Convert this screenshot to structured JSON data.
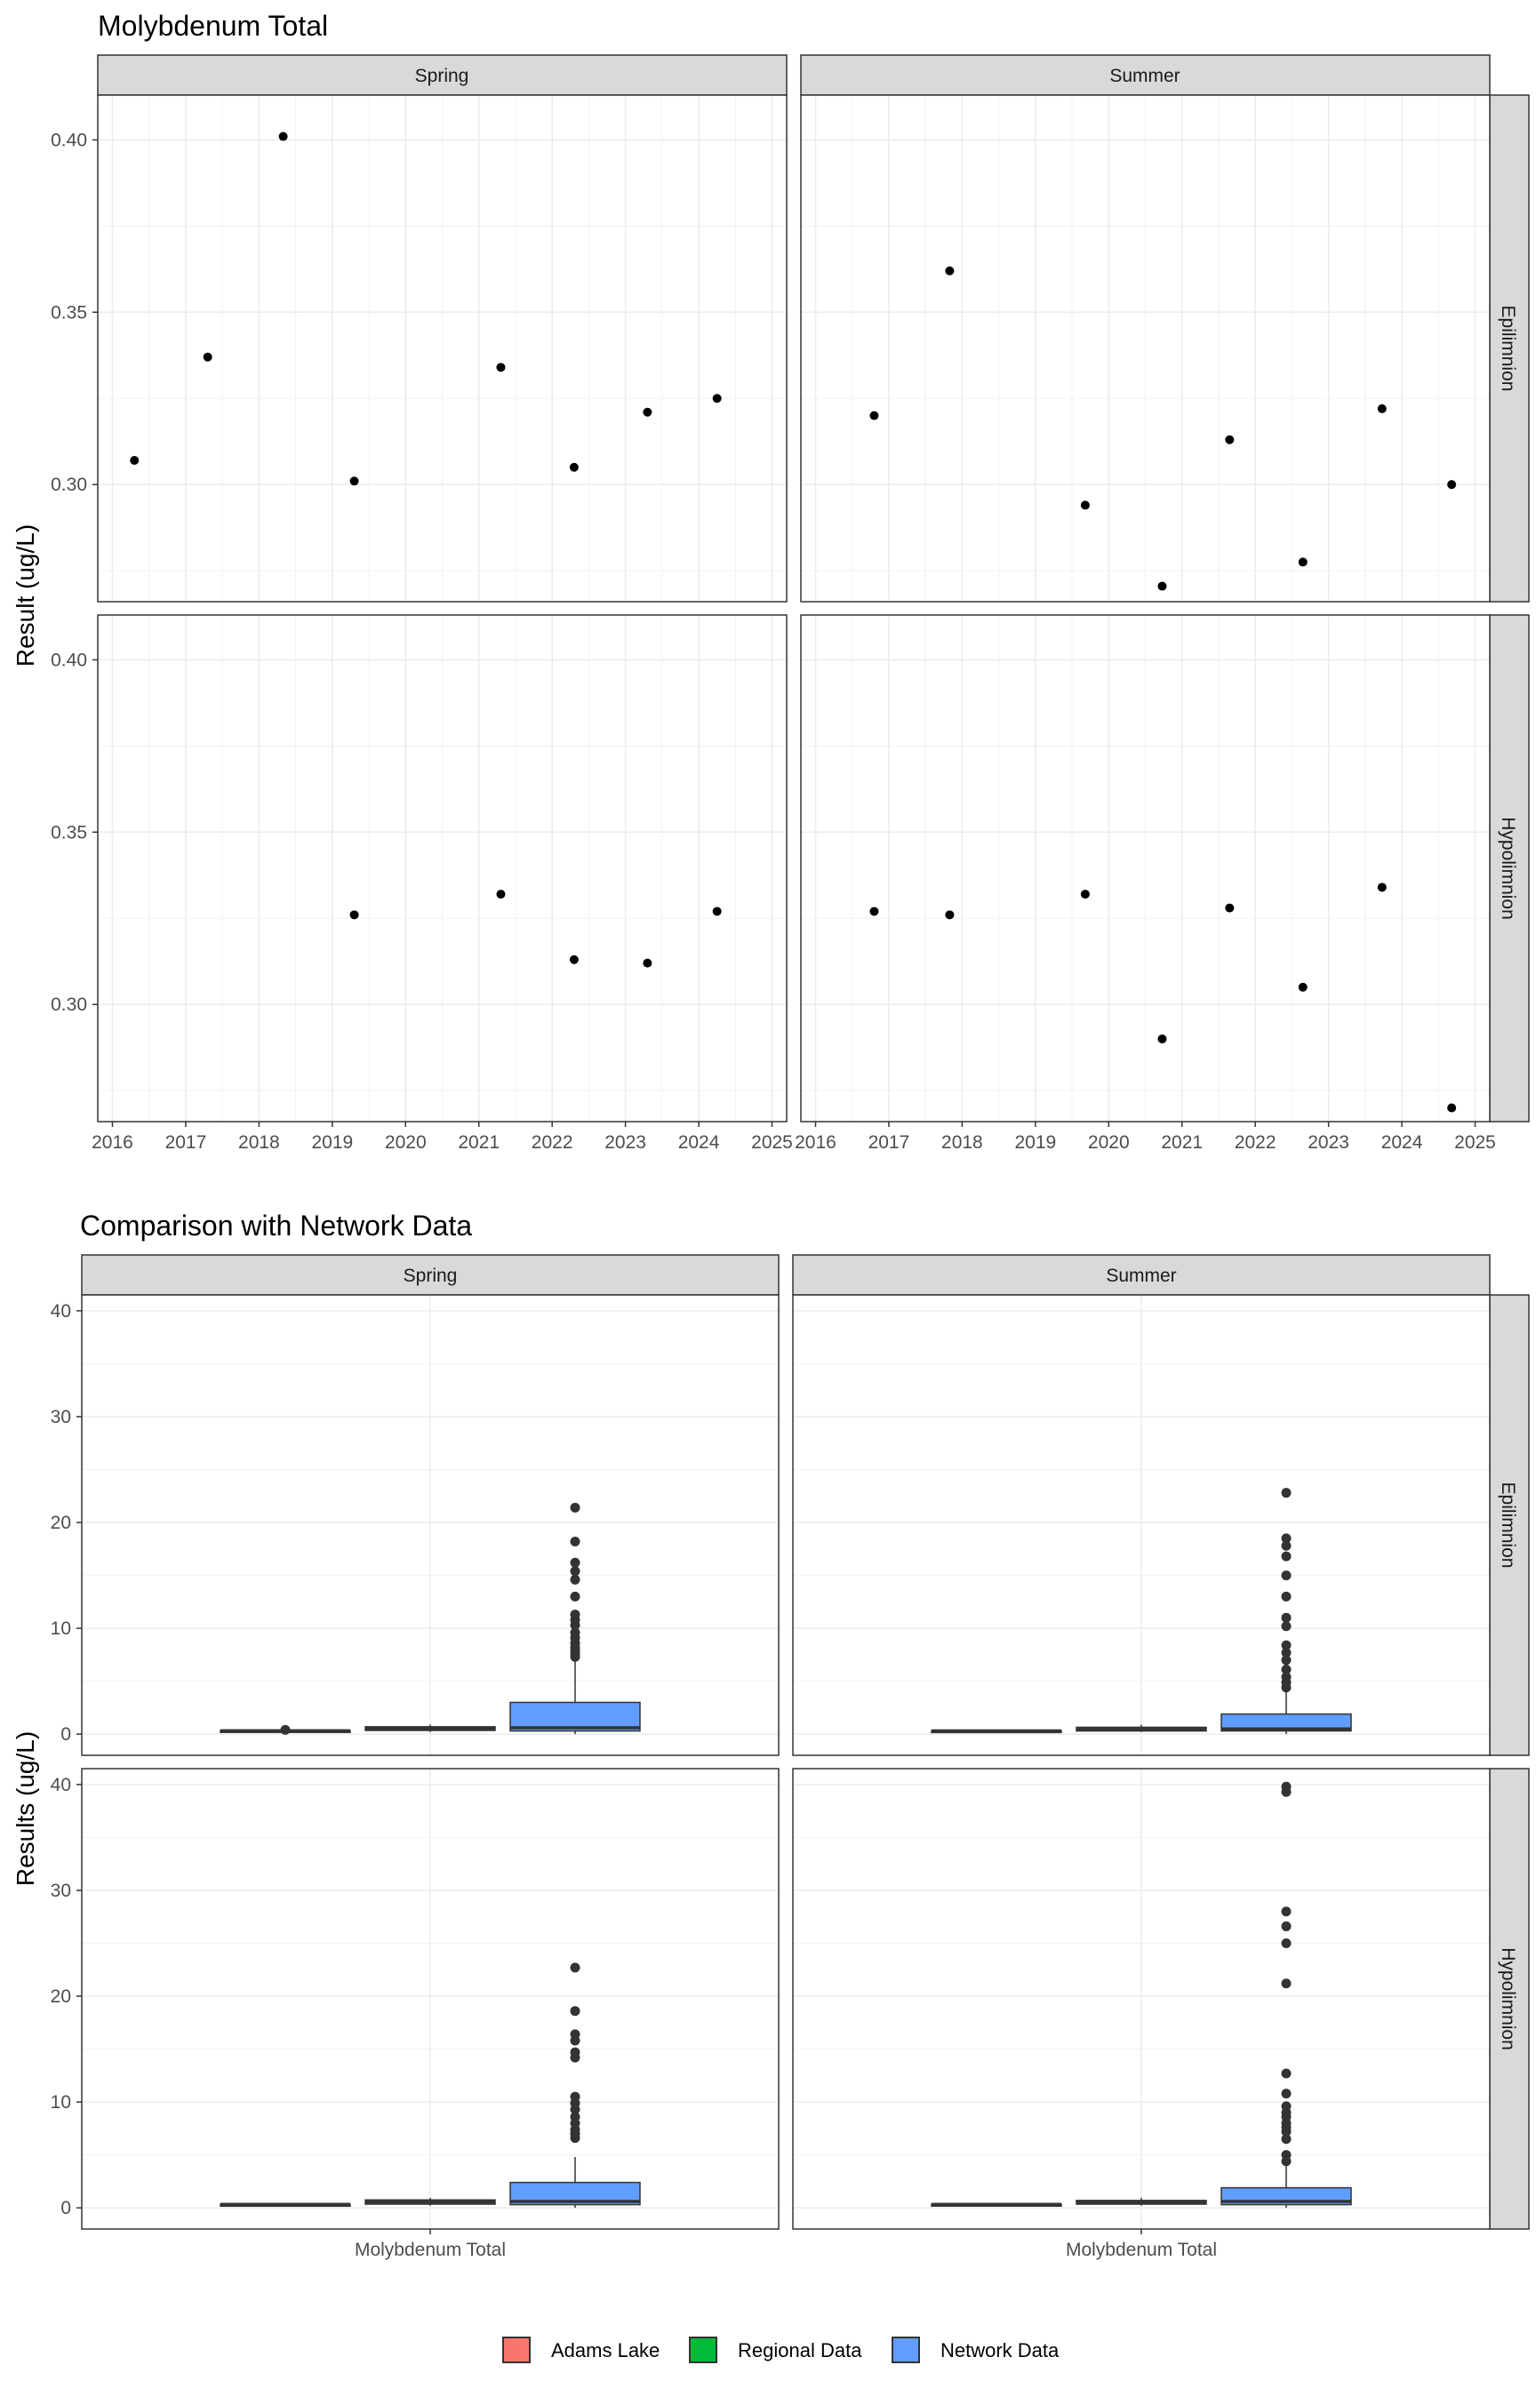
{
  "chart_data": [
    {
      "type": "scatter",
      "title": "Molybdenum Total",
      "ylabel": "Result (ug/L)",
      "xlabel": "",
      "columns": [
        "Spring",
        "Summer"
      ],
      "rows": [
        "Epilimnion",
        "Hypolimnion"
      ],
      "xlim": [
        2015.8,
        2025.2
      ],
      "xticks": [
        2016,
        2017,
        2018,
        2019,
        2020,
        2021,
        2022,
        2023,
        2024,
        2025
      ],
      "ylim": [
        0.266,
        0.413
      ],
      "yticks": [
        0.3,
        0.35,
        0.4
      ],
      "ytick_labels": [
        "0.30",
        "0.35",
        "0.40"
      ],
      "grid": true,
      "panels": [
        {
          "col": "Spring",
          "row": "Epilimnion",
          "points": [
            [
              2016.3,
              0.307
            ],
            [
              2017.3,
              0.337
            ],
            [
              2018.33,
              0.401
            ],
            [
              2019.3,
              0.301
            ],
            [
              2021.3,
              0.334
            ],
            [
              2022.3,
              0.305
            ],
            [
              2023.3,
              0.321
            ],
            [
              2024.25,
              0.325
            ]
          ]
        },
        {
          "col": "Summer",
          "row": "Epilimnion",
          "points": [
            [
              2016.8,
              0.32
            ],
            [
              2017.83,
              0.362
            ],
            [
              2019.68,
              0.294
            ],
            [
              2020.73,
              0.2705
            ],
            [
              2021.65,
              0.313
            ],
            [
              2022.65,
              0.2775
            ],
            [
              2023.73,
              0.322
            ],
            [
              2024.68,
              0.3
            ]
          ]
        },
        {
          "col": "Spring",
          "row": "Hypolimnion",
          "points": [
            [
              2019.3,
              0.326
            ],
            [
              2021.3,
              0.332
            ],
            [
              2022.3,
              0.313
            ],
            [
              2023.3,
              0.312
            ],
            [
              2024.25,
              0.327
            ]
          ]
        },
        {
          "col": "Summer",
          "row": "Hypolimnion",
          "points": [
            [
              2016.8,
              0.327
            ],
            [
              2017.83,
              0.326
            ],
            [
              2019.68,
              0.332
            ],
            [
              2020.73,
              0.29
            ],
            [
              2021.65,
              0.328
            ],
            [
              2022.65,
              0.305
            ],
            [
              2023.73,
              0.334
            ],
            [
              2024.68,
              0.27
            ]
          ]
        }
      ]
    },
    {
      "type": "box",
      "title": "Comparison with Network Data",
      "ylabel": "Results (ug/L)",
      "xlabel": "",
      "columns": [
        "Spring",
        "Summer"
      ],
      "rows": [
        "Epilimnion",
        "Hypolimnion"
      ],
      "categories": [
        "Molybdenum Total"
      ],
      "ylim": [
        -2,
        41.5
      ],
      "yticks": [
        0,
        10,
        20,
        30,
        40
      ],
      "grid": true,
      "legend": {
        "position": "bottom",
        "items": [
          {
            "name": "Adams Lake",
            "color": "#F8766D"
          },
          {
            "name": "Regional Data",
            "color": "#00BA38"
          },
          {
            "name": "Network Data",
            "color": "#619CFF"
          }
        ]
      },
      "panels": [
        {
          "col": "Spring",
          "row": "Epilimnion",
          "boxes": [
            {
              "group": "Adams Lake",
              "min": 0.3,
              "q1": 0.305,
              "median": 0.32,
              "q3": 0.334,
              "max": 0.4,
              "outliers": [
                0.4
              ]
            },
            {
              "group": "Regional Data",
              "min": 0.2,
              "q1": 0.35,
              "median": 0.5,
              "q3": 0.7,
              "max": 0.9,
              "outliers": []
            },
            {
              "group": "Network Data",
              "min": 0.0,
              "q1": 0.3,
              "median": 0.6,
              "q3": 3.0,
              "max": 7.0,
              "outliers": [
                7.3,
                7.6,
                7.9,
                8.2,
                8.6,
                9.1,
                9.6,
                10.3,
                10.8,
                11.3,
                13.0,
                14.6,
                15.4,
                16.2,
                18.2,
                21.4
              ]
            }
          ]
        },
        {
          "col": "Summer",
          "row": "Epilimnion",
          "boxes": [
            {
              "group": "Adams Lake",
              "min": 0.27,
              "q1": 0.28,
              "median": 0.31,
              "q3": 0.32,
              "max": 0.36,
              "outliers": []
            },
            {
              "group": "Regional Data",
              "min": 0.2,
              "q1": 0.3,
              "median": 0.45,
              "q3": 0.65,
              "max": 0.9,
              "outliers": []
            },
            {
              "group": "Network Data",
              "min": 0.0,
              "q1": 0.3,
              "median": 0.5,
              "q3": 1.9,
              "max": 4.0,
              "outliers": [
                4.4,
                4.9,
                5.4,
                6.1,
                7.0,
                7.7,
                8.4,
                10.2,
                11.0,
                13.0,
                15.0,
                16.8,
                17.8,
                18.5,
                22.8
              ]
            }
          ]
        },
        {
          "col": "Spring",
          "row": "Hypolimnion",
          "boxes": [
            {
              "group": "Adams Lake",
              "min": 0.31,
              "q1": 0.313,
              "median": 0.326,
              "q3": 0.327,
              "max": 0.332,
              "outliers": []
            },
            {
              "group": "Regional Data",
              "min": 0.2,
              "q1": 0.35,
              "median": 0.55,
              "q3": 0.75,
              "max": 0.95,
              "outliers": []
            },
            {
              "group": "Network Data",
              "min": 0.0,
              "q1": 0.3,
              "median": 0.6,
              "q3": 2.4,
              "max": 4.8,
              "outliers": [
                6.6,
                7.0,
                7.4,
                8.0,
                8.6,
                9.3,
                9.9,
                10.5,
                14.2,
                14.7,
                15.8,
                16.4,
                18.6,
                22.7
              ]
            }
          ]
        },
        {
          "col": "Summer",
          "row": "Hypolimnion",
          "boxes": [
            {
              "group": "Adams Lake",
              "min": 0.27,
              "q1": 0.29,
              "median": 0.327,
              "q3": 0.332,
              "max": 0.334,
              "outliers": []
            },
            {
              "group": "Regional Data",
              "min": 0.2,
              "q1": 0.35,
              "median": 0.5,
              "q3": 0.7,
              "max": 0.95,
              "outliers": []
            },
            {
              "group": "Network Data",
              "min": 0.0,
              "q1": 0.3,
              "median": 0.6,
              "q3": 1.9,
              "max": 4.0,
              "outliers": [
                4.4,
                5.0,
                6.5,
                7.2,
                7.6,
                8.0,
                8.6,
                9.0,
                9.6,
                10.8,
                12.7,
                21.2,
                25.0,
                26.6,
                28.0,
                39.3,
                39.8
              ]
            }
          ]
        }
      ]
    }
  ]
}
